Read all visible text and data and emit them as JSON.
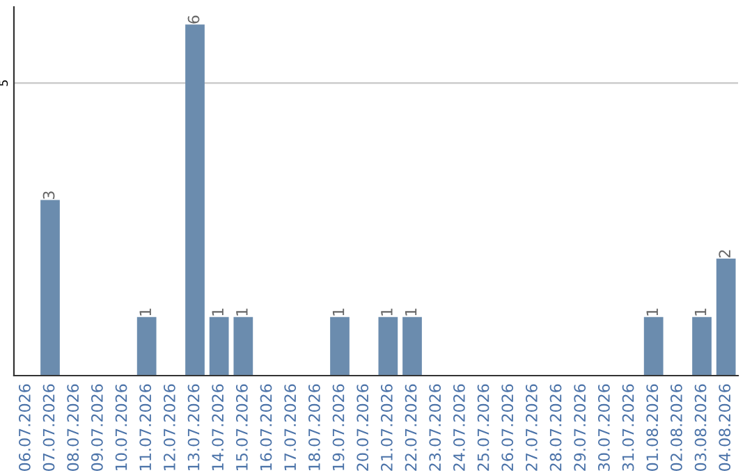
{
  "chart_data": {
    "type": "bar",
    "categories": [
      "06.07.2026",
      "07.07.2026",
      "08.07.2026",
      "09.07.2026",
      "10.07.2026",
      "11.07.2026",
      "12.07.2026",
      "13.07.2026",
      "14.07.2026",
      "15.07.2026",
      "16.07.2026",
      "17.07.2026",
      "18.07.2026",
      "19.07.2026",
      "20.07.2026",
      "21.07.2026",
      "22.07.2026",
      "23.07.2026",
      "24.07.2026",
      "25.07.2026",
      "26.07.2026",
      "27.07.2026",
      "28.07.2026",
      "29.07.2026",
      "30.07.2026",
      "31.07.2026",
      "01.08.2026",
      "02.08.2026",
      "03.08.2026",
      "04.08.2026"
    ],
    "values": [
      0,
      3,
      0,
      0,
      0,
      1,
      0,
      6,
      1,
      1,
      0,
      0,
      0,
      1,
      0,
      1,
      1,
      0,
      0,
      0,
      0,
      0,
      0,
      0,
      0,
      0,
      1,
      0,
      1,
      2
    ],
    "value_labels": [
      null,
      "3",
      null,
      null,
      null,
      "1",
      null,
      "6",
      "1",
      "1",
      null,
      null,
      null,
      "1",
      null,
      "1",
      "1",
      null,
      null,
      null,
      null,
      null,
      null,
      null,
      null,
      null,
      "1",
      null,
      "1",
      "2"
    ],
    "color": "#6b8cae",
    "ylim": [
      0,
      6.3
    ],
    "yticks": [
      5
    ],
    "grid": "y"
  }
}
